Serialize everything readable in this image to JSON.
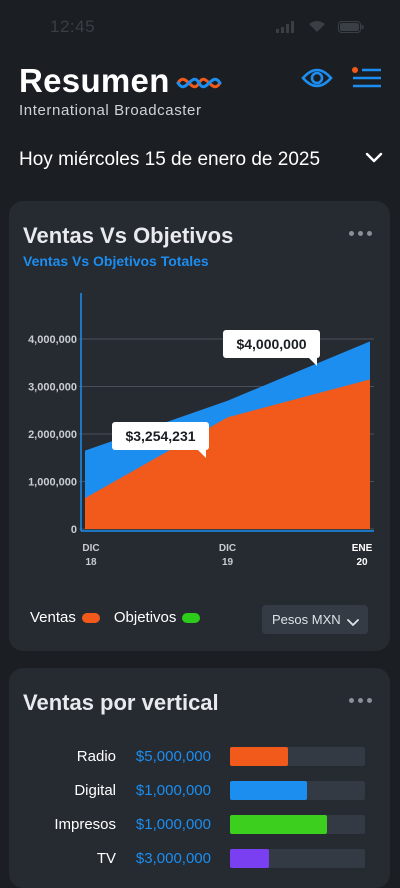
{
  "status_bar": {
    "time": "12:45"
  },
  "header": {
    "title": "Resumen",
    "subtitle": "International Broadcaster"
  },
  "date_selector": {
    "label": "Hoy miércoles 15 de enero de 2025"
  },
  "sales_card": {
    "title": "Ventas Vs Objetivos",
    "subtitle": "Ventas Vs Objetivos Totales",
    "legend": [
      {
        "label": "Ventas",
        "color": "#f15a1b"
      },
      {
        "label": "Objetivos",
        "color": "#2ecc1a"
      }
    ],
    "currency": "Pesos MXN",
    "tooltips": [
      {
        "label": "$3,254,231"
      },
      {
        "label": "$4,000,000"
      }
    ]
  },
  "chart_data": {
    "type": "area",
    "x": [
      "DIC 18",
      "DIC 19",
      "ENE 20"
    ],
    "x_ticks": [
      {
        "top": "DIC",
        "bottom": "18"
      },
      {
        "top": "DIC",
        "bottom": "19"
      },
      {
        "top": "ENE",
        "bottom": "20"
      }
    ],
    "y_ticks": [
      "0",
      "1,000,000",
      "2,000,000",
      "3,000,000",
      "4,000,000"
    ],
    "ylim": [
      0,
      4000000
    ],
    "series": [
      {
        "name": "Objetivos",
        "color": "#1c8ef0",
        "values": [
          1650000,
          2700000,
          3950000
        ]
      },
      {
        "name": "Ventas",
        "color": "#f15a1b",
        "values": [
          650000,
          2350000,
          3150000
        ]
      }
    ],
    "annotations": [
      {
        "text": "$3,254,231",
        "x": "DIC 18",
        "y": 1800000
      },
      {
        "text": "$4,000,000",
        "x": "ENE 20",
        "y": 3500000
      }
    ]
  },
  "vertical_card": {
    "title": "Ventas por vertical",
    "rows": [
      {
        "name": "Radio",
        "value": "$5,000,000",
        "fraction": 0.43,
        "color": "#f15a1b"
      },
      {
        "name": "Digital",
        "value": "$1,000,000",
        "fraction": 0.57,
        "color": "#1c8ef0"
      },
      {
        "name": "Impresos",
        "value": "$1,000,000",
        "fraction": 0.72,
        "color": "#3ccf1e"
      },
      {
        "name": "TV",
        "value": "$3,000,000",
        "fraction": 0.29,
        "color": "#7b3ff2"
      }
    ]
  }
}
